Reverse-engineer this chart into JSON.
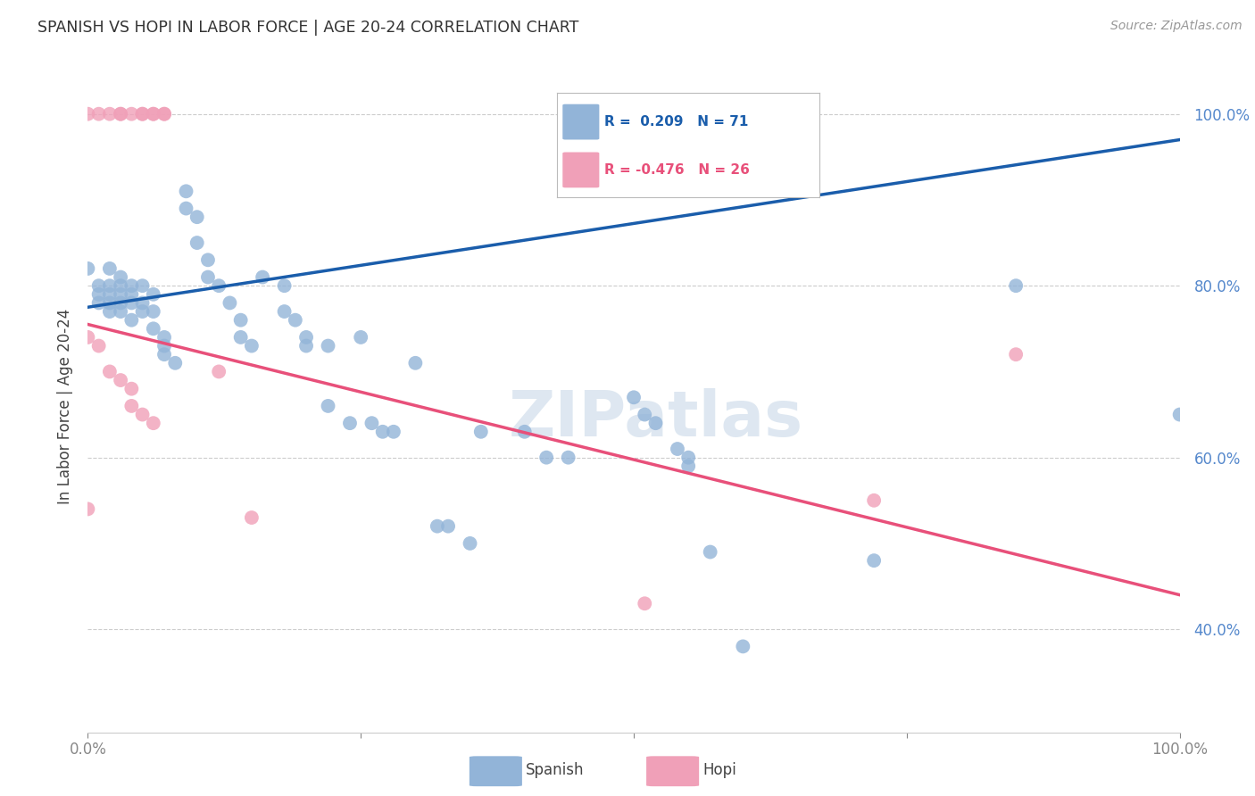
{
  "title": "SPANISH VS HOPI IN LABOR FORCE | AGE 20-24 CORRELATION CHART",
  "source": "Source: ZipAtlas.com",
  "ylabel": "In Labor Force | Age 20-24",
  "watermark": "ZIPatlas",
  "legend_spanish_R": "0.209",
  "legend_spanish_N": "71",
  "legend_hopi_R": "-0.476",
  "legend_hopi_N": "26",
  "spanish_color": "#92B4D8",
  "hopi_color": "#F0A0B8",
  "blue_line_color": "#1A5DAB",
  "pink_line_color": "#E8507A",
  "spanish_points": [
    [
      0.0,
      0.82
    ],
    [
      0.01,
      0.8
    ],
    [
      0.01,
      0.79
    ],
    [
      0.01,
      0.78
    ],
    [
      0.02,
      0.82
    ],
    [
      0.02,
      0.8
    ],
    [
      0.02,
      0.79
    ],
    [
      0.02,
      0.78
    ],
    [
      0.02,
      0.77
    ],
    [
      0.03,
      0.81
    ],
    [
      0.03,
      0.8
    ],
    [
      0.03,
      0.79
    ],
    [
      0.03,
      0.78
    ],
    [
      0.03,
      0.77
    ],
    [
      0.04,
      0.8
    ],
    [
      0.04,
      0.79
    ],
    [
      0.04,
      0.78
    ],
    [
      0.04,
      0.76
    ],
    [
      0.05,
      0.8
    ],
    [
      0.05,
      0.78
    ],
    [
      0.05,
      0.77
    ],
    [
      0.06,
      0.79
    ],
    [
      0.06,
      0.77
    ],
    [
      0.06,
      0.75
    ],
    [
      0.07,
      0.74
    ],
    [
      0.07,
      0.73
    ],
    [
      0.07,
      0.72
    ],
    [
      0.08,
      0.71
    ],
    [
      0.09,
      0.91
    ],
    [
      0.09,
      0.89
    ],
    [
      0.1,
      0.88
    ],
    [
      0.1,
      0.85
    ],
    [
      0.11,
      0.83
    ],
    [
      0.11,
      0.81
    ],
    [
      0.12,
      0.8
    ],
    [
      0.13,
      0.78
    ],
    [
      0.14,
      0.76
    ],
    [
      0.14,
      0.74
    ],
    [
      0.15,
      0.73
    ],
    [
      0.16,
      0.81
    ],
    [
      0.18,
      0.8
    ],
    [
      0.18,
      0.77
    ],
    [
      0.19,
      0.76
    ],
    [
      0.2,
      0.74
    ],
    [
      0.2,
      0.73
    ],
    [
      0.22,
      0.73
    ],
    [
      0.22,
      0.66
    ],
    [
      0.24,
      0.64
    ],
    [
      0.25,
      0.74
    ],
    [
      0.26,
      0.64
    ],
    [
      0.27,
      0.63
    ],
    [
      0.28,
      0.63
    ],
    [
      0.3,
      0.71
    ],
    [
      0.32,
      0.52
    ],
    [
      0.33,
      0.52
    ],
    [
      0.35,
      0.5
    ],
    [
      0.36,
      0.63
    ],
    [
      0.4,
      0.63
    ],
    [
      0.42,
      0.6
    ],
    [
      0.44,
      0.6
    ],
    [
      0.5,
      0.67
    ],
    [
      0.51,
      0.65
    ],
    [
      0.52,
      0.64
    ],
    [
      0.54,
      0.61
    ],
    [
      0.55,
      0.6
    ],
    [
      0.55,
      0.59
    ],
    [
      0.57,
      0.49
    ],
    [
      0.6,
      0.38
    ],
    [
      0.72,
      0.48
    ],
    [
      0.85,
      0.8
    ],
    [
      1.0,
      0.65
    ]
  ],
  "hopi_points": [
    [
      0.0,
      1.0
    ],
    [
      0.01,
      1.0
    ],
    [
      0.02,
      1.0
    ],
    [
      0.03,
      1.0
    ],
    [
      0.03,
      1.0
    ],
    [
      0.04,
      1.0
    ],
    [
      0.05,
      1.0
    ],
    [
      0.05,
      1.0
    ],
    [
      0.06,
      1.0
    ],
    [
      0.06,
      1.0
    ],
    [
      0.07,
      1.0
    ],
    [
      0.07,
      1.0
    ],
    [
      0.0,
      0.74
    ],
    [
      0.01,
      0.73
    ],
    [
      0.02,
      0.7
    ],
    [
      0.03,
      0.69
    ],
    [
      0.04,
      0.68
    ],
    [
      0.04,
      0.66
    ],
    [
      0.05,
      0.65
    ],
    [
      0.06,
      0.64
    ],
    [
      0.12,
      0.7
    ],
    [
      0.0,
      0.54
    ],
    [
      0.15,
      0.53
    ],
    [
      0.51,
      0.43
    ],
    [
      0.72,
      0.55
    ],
    [
      0.85,
      0.72
    ]
  ],
  "xmin": 0.0,
  "xmax": 1.0,
  "ymin": 0.28,
  "ymax": 1.04,
  "blue_line_x0": 0.0,
  "blue_line_y0": 0.775,
  "blue_line_x1": 1.0,
  "blue_line_y1": 0.97,
  "pink_line_x0": 0.0,
  "pink_line_y0": 0.755,
  "pink_line_x1": 1.0,
  "pink_line_y1": 0.44
}
